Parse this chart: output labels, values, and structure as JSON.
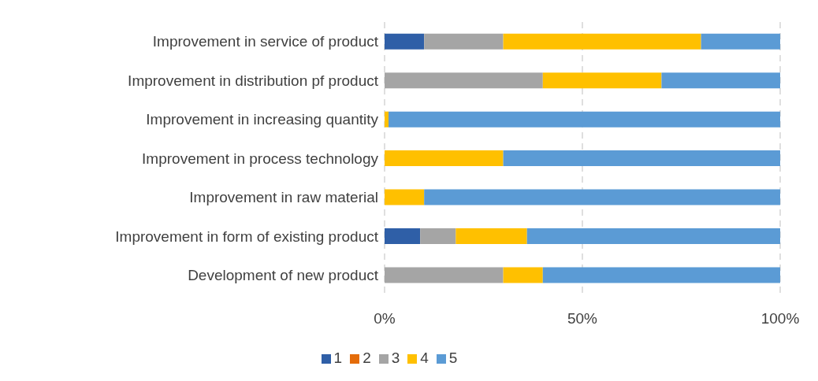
{
  "chart_data": {
    "type": "bar",
    "orientation": "horizontal",
    "stacked": true,
    "categories": [
      "Improvement in service of product",
      "Improvement in distribution pf product",
      "Improvement in increasing quantity",
      "Improvement in process technology",
      "Improvement in raw material",
      "Improvement in form of existing product",
      "Development of new product"
    ],
    "series": [
      {
        "name": "1",
        "color": "#2f5fa7",
        "values": [
          10,
          0,
          0,
          0,
          0,
          9,
          0
        ]
      },
      {
        "name": "2",
        "color": "#e46c0a",
        "values": [
          0,
          0,
          0,
          0,
          0,
          0,
          0
        ]
      },
      {
        "name": "3",
        "color": "#a5a5a5",
        "values": [
          20,
          40,
          0,
          0,
          0,
          9,
          30
        ]
      },
      {
        "name": "4",
        "color": "#ffc000",
        "values": [
          50,
          30,
          1,
          30,
          10,
          18,
          10
        ]
      },
      {
        "name": "5",
        "color": "#5b9bd5",
        "values": [
          20,
          30,
          99,
          70,
          90,
          64,
          60
        ]
      }
    ],
    "xlim": [
      0,
      100
    ],
    "xticks": [
      {
        "value": 0,
        "label": "0%"
      },
      {
        "value": 50,
        "label": "50%"
      },
      {
        "value": 100,
        "label": "100%"
      }
    ],
    "grid": "x",
    "legend": "bottom"
  }
}
